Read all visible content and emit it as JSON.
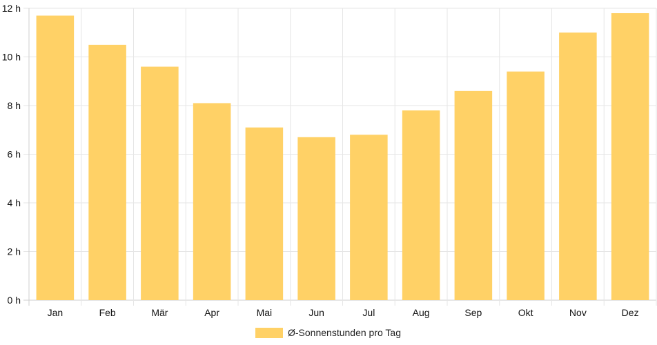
{
  "chart_data": {
    "type": "bar",
    "categories": [
      "Jan",
      "Feb",
      "Mär",
      "Apr",
      "Mai",
      "Jun",
      "Jul",
      "Aug",
      "Sep",
      "Okt",
      "Nov",
      "Dez"
    ],
    "series": [
      {
        "name": "Ø-Sonnenstunden pro Tag",
        "values": [
          11.7,
          10.5,
          9.6,
          8.1,
          7.1,
          6.7,
          6.8,
          7.8,
          8.6,
          9.4,
          11.0,
          11.8
        ],
        "color": "#ffd166"
      }
    ],
    "title": "",
    "xlabel": "",
    "ylabel": "",
    "ylim": [
      0,
      12
    ],
    "yticks": [
      "0 h",
      "2 h",
      "4 h",
      "6 h",
      "8 h",
      "10 h",
      "12 h"
    ],
    "grid": true,
    "legend_position": "bottom"
  }
}
